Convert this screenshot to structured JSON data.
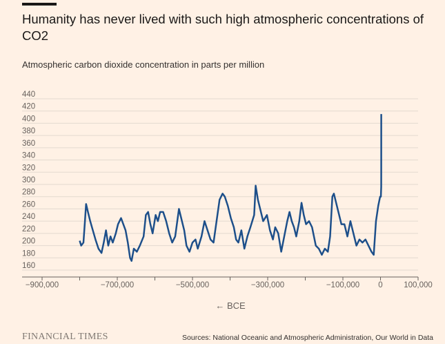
{
  "chart_data": {
    "type": "line",
    "title": "Humanity has never lived with such high atmospheric concentrations of CO2",
    "subtitle": "Atmospheric carbon dioxide concentration in parts per million",
    "annotation": "← BCE",
    "brand": "FINANCIAL TIMES",
    "source": "Sources: National Oceanic and Atmospheric Administration, Our World in Data",
    "xlim": [
      -900000,
      100000
    ],
    "xticks": [
      {
        "value": -900000,
        "label": "−900,000"
      },
      {
        "value": -700000,
        "label": "−700,000"
      },
      {
        "value": -500000,
        "label": "−500,000"
      },
      {
        "value": -300000,
        "label": "−300,000"
      },
      {
        "value": -100000,
        "label": "−100,000"
      },
      0,
      {
        "value": 100000,
        "label": "100,000"
      }
    ],
    "xminorticks": [
      -800000,
      -600000,
      -400000,
      -200000
    ],
    "ylim": [
      160,
      440
    ],
    "yticks": [
      160,
      180,
      200,
      220,
      240,
      260,
      280,
      300,
      320,
      340,
      360,
      380,
      400,
      420,
      440
    ],
    "grid": true,
    "series": [
      {
        "name": "CO2",
        "color": "#1d4f8a",
        "x": [
          -800000,
          -796000,
          -790000,
          -786000,
          -783000,
          -778000,
          -772000,
          -765000,
          -758000,
          -750000,
          -742000,
          -736000,
          -730000,
          -724000,
          -718000,
          -712000,
          -704000,
          -698000,
          -690000,
          -684000,
          -678000,
          -672000,
          -666000,
          -662000,
          -656000,
          -648000,
          -640000,
          -630000,
          -624000,
          -618000,
          -612000,
          -606000,
          -598000,
          -592000,
          -586000,
          -578000,
          -570000,
          -562000,
          -554000,
          -546000,
          -536000,
          -528000,
          -522000,
          -516000,
          -508000,
          -500000,
          -492000,
          -486000,
          -476000,
          -468000,
          -460000,
          -452000,
          -444000,
          -436000,
          -428000,
          -420000,
          -414000,
          -406000,
          -398000,
          -390000,
          -384000,
          -378000,
          -370000,
          -362000,
          -354000,
          -346000,
          -336000,
          -332000,
          -326000,
          -320000,
          -312000,
          -302000,
          -294000,
          -286000,
          -280000,
          -272000,
          -264000,
          -256000,
          -248000,
          -242000,
          -236000,
          -230000,
          -224000,
          -216000,
          -210000,
          -204000,
          -198000,
          -190000,
          -182000,
          -172000,
          -164000,
          -156000,
          -148000,
          -140000,
          -134000,
          -128000,
          -124000,
          -118000,
          -112000,
          -104000,
          -96000,
          -88000,
          -80000,
          -72000,
          -64000,
          -56000,
          -48000,
          -40000,
          -32000,
          -24000,
          -18000,
          -12000,
          -6000,
          -1000,
          1000,
          1900,
          1960,
          2000,
          2020
        ],
        "values": [
          208,
          200,
          205,
          240,
          268,
          255,
          240,
          225,
          210,
          195,
          188,
          205,
          225,
          200,
          215,
          205,
          220,
          235,
          245,
          235,
          225,
          205,
          180,
          175,
          195,
          190,
          200,
          215,
          250,
          255,
          235,
          220,
          250,
          240,
          255,
          255,
          240,
          220,
          205,
          215,
          260,
          240,
          225,
          200,
          190,
          205,
          210,
          195,
          215,
          240,
          225,
          210,
          205,
          240,
          275,
          285,
          280,
          265,
          245,
          230,
          210,
          205,
          225,
          195,
          215,
          230,
          250,
          298,
          275,
          260,
          240,
          250,
          225,
          210,
          230,
          220,
          190,
          215,
          240,
          255,
          240,
          230,
          215,
          240,
          270,
          250,
          235,
          240,
          230,
          200,
          195,
          185,
          195,
          190,
          215,
          280,
          285,
          270,
          255,
          235,
          235,
          215,
          240,
          220,
          200,
          210,
          205,
          210,
          200,
          190,
          185,
          240,
          265,
          280,
          280,
          296,
          317,
          370,
          415
        ]
      }
    ]
  }
}
